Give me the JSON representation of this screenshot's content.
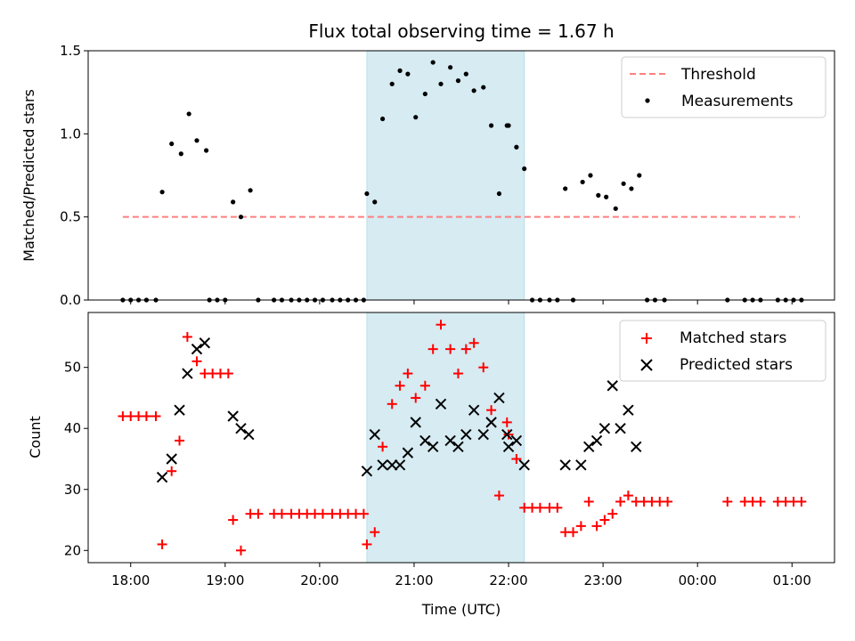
{
  "chart_data": [
    {
      "type": "scatter",
      "title": "Flux total observing time = 1.67 h",
      "ylabel": "Matched/Predicted stars",
      "xlabel": "",
      "xlim": [
        "17:33",
        "01:27"
      ],
      "ylim": [
        0,
        1.5
      ],
      "yticks": [
        "0.0",
        "0.5",
        "1.0",
        "1.5"
      ],
      "highlight_span": [
        "20:30",
        "22:10"
      ],
      "legend_position": "top-right",
      "threshold": {
        "name": "Threshold",
        "y": 0.5,
        "x": [
          "17:55",
          "01:05"
        ],
        "color": "#ff7f7f",
        "style": "dashed"
      },
      "series": [
        {
          "name": "Measurements",
          "color": "#000000",
          "marker": "dot",
          "points": [
            [
              "17:55",
              0.0
            ],
            [
              "18:00",
              0.0
            ],
            [
              "18:05",
              0.0
            ],
            [
              "18:10",
              0.0
            ],
            [
              "18:16",
              0.0
            ],
            [
              "18:20",
              0.65
            ],
            [
              "18:26",
              0.94
            ],
            [
              "18:32",
              0.88
            ],
            [
              "18:37",
              1.12
            ],
            [
              "18:42",
              0.96
            ],
            [
              "18:48",
              0.9
            ],
            [
              "18:50",
              0.0
            ],
            [
              "18:55",
              0.0
            ],
            [
              "19:00",
              0.0
            ],
            [
              "19:05",
              0.59
            ],
            [
              "19:10",
              0.5
            ],
            [
              "19:16",
              0.66
            ],
            [
              "19:21",
              0.0
            ],
            [
              "19:31",
              0.0
            ],
            [
              "19:36",
              0.0
            ],
            [
              "19:42",
              0.0
            ],
            [
              "19:47",
              0.0
            ],
            [
              "19:52",
              0.0
            ],
            [
              "19:57",
              0.0
            ],
            [
              "20:02",
              0.0
            ],
            [
              "20:08",
              0.0
            ],
            [
              "20:13",
              0.0
            ],
            [
              "20:18",
              0.0
            ],
            [
              "20:23",
              0.0
            ],
            [
              "20:28",
              0.0
            ],
            [
              "20:30",
              0.64
            ],
            [
              "20:35",
              0.59
            ],
            [
              "20:40",
              1.09
            ],
            [
              "20:46",
              1.3
            ],
            [
              "20:51",
              1.38
            ],
            [
              "20:56",
              1.36
            ],
            [
              "21:01",
              1.1
            ],
            [
              "21:07",
              1.24
            ],
            [
              "21:12",
              1.43
            ],
            [
              "21:17",
              1.3
            ],
            [
              "21:23",
              1.4
            ],
            [
              "21:28",
              1.32
            ],
            [
              "21:33",
              1.36
            ],
            [
              "21:38",
              1.26
            ],
            [
              "21:44",
              1.28
            ],
            [
              "21:49",
              1.05
            ],
            [
              "21:54",
              0.64
            ],
            [
              "21:59",
              1.05
            ],
            [
              "22:00",
              1.05
            ],
            [
              "22:05",
              0.92
            ],
            [
              "22:10",
              0.79
            ],
            [
              "22:15",
              0.0
            ],
            [
              "22:20",
              0.0
            ],
            [
              "22:26",
              0.0
            ],
            [
              "22:31",
              0.0
            ],
            [
              "22:41",
              0.0
            ],
            [
              "22:36",
              0.67
            ],
            [
              "22:47",
              0.71
            ],
            [
              "22:52",
              0.75
            ],
            [
              "22:57",
              0.63
            ],
            [
              "23:02",
              0.62
            ],
            [
              "23:08",
              0.55
            ],
            [
              "23:13",
              0.7
            ],
            [
              "23:18",
              0.67
            ],
            [
              "23:23",
              0.75
            ],
            [
              "23:28",
              0.0
            ],
            [
              "23:33",
              0.0
            ],
            [
              "23:39",
              0.0
            ],
            [
              "00:19",
              0.0
            ],
            [
              "00:30",
              0.0
            ],
            [
              "00:35",
              0.0
            ],
            [
              "00:40",
              0.0
            ],
            [
              "00:51",
              0.0
            ],
            [
              "00:56",
              0.0
            ],
            [
              "01:01",
              0.0
            ],
            [
              "01:06",
              0.0
            ]
          ]
        }
      ]
    },
    {
      "type": "scatter",
      "title": "",
      "xlabel": "Time (UTC)",
      "ylabel": "Count",
      "xlim": [
        "17:33",
        "01:27"
      ],
      "ylim": [
        18,
        59
      ],
      "yticks": [
        "20",
        "30",
        "40",
        "50"
      ],
      "xticks": [
        "18:00",
        "19:00",
        "20:00",
        "21:00",
        "22:00",
        "23:00",
        "00:00",
        "01:00"
      ],
      "highlight_span": [
        "20:30",
        "22:10"
      ],
      "legend_position": "top-right",
      "series": [
        {
          "name": "Matched stars",
          "color": "#ff0000",
          "marker": "plus",
          "points": [
            [
              "17:55",
              42
            ],
            [
              "18:00",
              42
            ],
            [
              "18:05",
              42
            ],
            [
              "18:10",
              42
            ],
            [
              "18:16",
              42
            ],
            [
              "18:20",
              21
            ],
            [
              "18:26",
              33
            ],
            [
              "18:31",
              38
            ],
            [
              "18:36",
              55
            ],
            [
              "18:42",
              51
            ],
            [
              "18:47",
              49
            ],
            [
              "18:52",
              49
            ],
            [
              "18:57",
              49
            ],
            [
              "19:02",
              49
            ],
            [
              "19:05",
              25
            ],
            [
              "19:10",
              20
            ],
            [
              "19:16",
              26
            ],
            [
              "19:21",
              26
            ],
            [
              "19:31",
              26
            ],
            [
              "19:36",
              26
            ],
            [
              "19:42",
              26
            ],
            [
              "19:47",
              26
            ],
            [
              "19:52",
              26
            ],
            [
              "19:57",
              26
            ],
            [
              "20:02",
              26
            ],
            [
              "20:08",
              26
            ],
            [
              "20:13",
              26
            ],
            [
              "20:18",
              26
            ],
            [
              "20:23",
              26
            ],
            [
              "20:28",
              26
            ],
            [
              "20:30",
              21
            ],
            [
              "20:35",
              23
            ],
            [
              "20:40",
              37
            ],
            [
              "20:46",
              44
            ],
            [
              "20:51",
              47
            ],
            [
              "20:56",
              49
            ],
            [
              "21:01",
              45
            ],
            [
              "21:07",
              47
            ],
            [
              "21:12",
              53
            ],
            [
              "21:17",
              57
            ],
            [
              "21:23",
              53
            ],
            [
              "21:28",
              49
            ],
            [
              "21:33",
              53
            ],
            [
              "21:38",
              54
            ],
            [
              "21:44",
              50
            ],
            [
              "21:49",
              43
            ],
            [
              "21:54",
              29
            ],
            [
              "21:59",
              41
            ],
            [
              "22:00",
              39
            ],
            [
              "22:05",
              35
            ],
            [
              "22:10",
              27
            ],
            [
              "22:15",
              27
            ],
            [
              "22:20",
              27
            ],
            [
              "22:26",
              27
            ],
            [
              "22:31",
              27
            ],
            [
              "22:36",
              23
            ],
            [
              "22:41",
              23
            ],
            [
              "22:46",
              24
            ],
            [
              "22:51",
              28
            ],
            [
              "22:56",
              24
            ],
            [
              "23:01",
              25
            ],
            [
              "23:06",
              26
            ],
            [
              "23:11",
              28
            ],
            [
              "23:16",
              29
            ],
            [
              "23:21",
              28
            ],
            [
              "23:26",
              28
            ],
            [
              "23:31",
              28
            ],
            [
              "23:36",
              28
            ],
            [
              "23:41",
              28
            ],
            [
              "00:19",
              28
            ],
            [
              "00:30",
              28
            ],
            [
              "00:35",
              28
            ],
            [
              "00:40",
              28
            ],
            [
              "00:51",
              28
            ],
            [
              "00:56",
              28
            ],
            [
              "01:01",
              28
            ],
            [
              "01:06",
              28
            ]
          ]
        },
        {
          "name": "Predicted stars",
          "color": "#000000",
          "marker": "x",
          "points": [
            [
              "18:20",
              32
            ],
            [
              "18:26",
              35
            ],
            [
              "18:31",
              43
            ],
            [
              "18:36",
              49
            ],
            [
              "18:42",
              53
            ],
            [
              "18:47",
              54
            ],
            [
              "19:05",
              42
            ],
            [
              "19:10",
              40
            ],
            [
              "19:15",
              39
            ],
            [
              "20:30",
              33
            ],
            [
              "20:35",
              39
            ],
            [
              "20:40",
              34
            ],
            [
              "20:46",
              34
            ],
            [
              "20:51",
              34
            ],
            [
              "20:56",
              36
            ],
            [
              "21:01",
              41
            ],
            [
              "21:07",
              38
            ],
            [
              "21:12",
              37
            ],
            [
              "21:17",
              44
            ],
            [
              "21:23",
              38
            ],
            [
              "21:28",
              37
            ],
            [
              "21:33",
              39
            ],
            [
              "21:38",
              43
            ],
            [
              "21:44",
              39
            ],
            [
              "21:49",
              41
            ],
            [
              "21:54",
              45
            ],
            [
              "21:59",
              39
            ],
            [
              "22:00",
              37
            ],
            [
              "22:05",
              38
            ],
            [
              "22:10",
              34
            ],
            [
              "22:36",
              34
            ],
            [
              "22:46",
              34
            ],
            [
              "22:51",
              37
            ],
            [
              "22:56",
              38
            ],
            [
              "23:01",
              40
            ],
            [
              "23:06",
              47
            ],
            [
              "23:11",
              40
            ],
            [
              "23:16",
              43
            ],
            [
              "23:21",
              37
            ]
          ]
        }
      ]
    }
  ]
}
